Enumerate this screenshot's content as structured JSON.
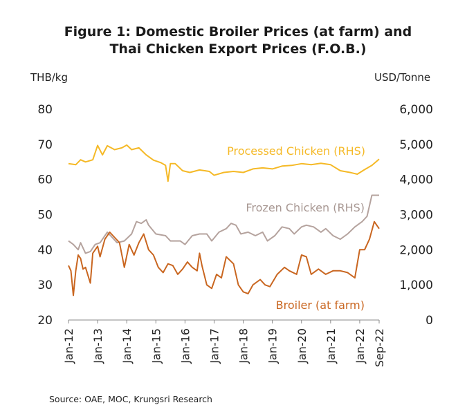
{
  "chart_data": {
    "type": "line",
    "title": "Figure 1: Domestic Broiler Prices (at farm) and Thai Chicken Export Prices (F.O.B.)",
    "title_lines": [
      "Figure 1: Domestic Broiler Prices (at farm) and",
      "Thai Chicken Export Prices (F.O.B.)"
    ],
    "y_left_label": "THB/kg",
    "y_right_label": "USD/Tonne",
    "y_left_range": [
      20,
      80
    ],
    "y_left_ticks": [
      "80",
      "70",
      "60",
      "50",
      "40",
      "30",
      "20"
    ],
    "y_right_range": [
      0,
      6000
    ],
    "y_right_ticks": [
      "6,000",
      "5,000",
      "4,000",
      "3,000",
      "2,000",
      "1,000",
      "0"
    ],
    "x_range": [
      "2012-01",
      "2022-09"
    ],
    "x_ticks": [
      "Jan-12",
      "Jan-13",
      "Jan-14",
      "Jan-15",
      "Jan-16",
      "Jan-17",
      "Jan-18",
      "Jan-19",
      "Jan-20",
      "Jan-21",
      "Jan-22",
      "Sep-22"
    ],
    "x_tick_dates": [
      "2012-01",
      "2013-01",
      "2014-01",
      "2015-01",
      "2016-01",
      "2017-01",
      "2018-01",
      "2019-01",
      "2020-01",
      "2021-01",
      "2022-01",
      "2022-09"
    ],
    "grid": false,
    "series": [
      {
        "name": "Processed Chicken (RHS)",
        "axis": "right",
        "color": "#F5B926",
        "points": [
          [
            "2012-01",
            4450
          ],
          [
            "2012-04",
            4420
          ],
          [
            "2012-06",
            4560
          ],
          [
            "2012-08",
            4500
          ],
          [
            "2012-11",
            4560
          ],
          [
            "2013-01",
            4970
          ],
          [
            "2013-03",
            4700
          ],
          [
            "2013-05",
            4960
          ],
          [
            "2013-08",
            4850
          ],
          [
            "2013-11",
            4900
          ],
          [
            "2014-01",
            4980
          ],
          [
            "2014-03",
            4850
          ],
          [
            "2014-06",
            4900
          ],
          [
            "2014-09",
            4700
          ],
          [
            "2014-12",
            4550
          ],
          [
            "2015-03",
            4480
          ],
          [
            "2015-05",
            4400
          ],
          [
            "2015-06",
            3950
          ],
          [
            "2015-07",
            4450
          ],
          [
            "2015-09",
            4450
          ],
          [
            "2015-12",
            4250
          ],
          [
            "2016-03",
            4200
          ],
          [
            "2016-07",
            4270
          ],
          [
            "2016-11",
            4230
          ],
          [
            "2017-01",
            4120
          ],
          [
            "2017-05",
            4200
          ],
          [
            "2017-09",
            4230
          ],
          [
            "2018-01",
            4200
          ],
          [
            "2018-05",
            4300
          ],
          [
            "2018-09",
            4330
          ],
          [
            "2019-01",
            4300
          ],
          [
            "2019-05",
            4380
          ],
          [
            "2019-09",
            4400
          ],
          [
            "2020-01",
            4450
          ],
          [
            "2020-05",
            4420
          ],
          [
            "2020-09",
            4460
          ],
          [
            "2021-01",
            4420
          ],
          [
            "2021-05",
            4250
          ],
          [
            "2021-09",
            4200
          ],
          [
            "2021-12",
            4150
          ],
          [
            "2022-03",
            4280
          ],
          [
            "2022-06",
            4400
          ],
          [
            "2022-09",
            4580
          ]
        ]
      },
      {
        "name": "Frozen Chicken (RHS)",
        "axis": "right",
        "color": "#B5A39E",
        "points": [
          [
            "2012-01",
            2250
          ],
          [
            "2012-03",
            2150
          ],
          [
            "2012-05",
            2000
          ],
          [
            "2012-06",
            2200
          ],
          [
            "2012-08",
            1900
          ],
          [
            "2012-10",
            1950
          ],
          [
            "2012-12",
            2150
          ],
          [
            "2013-02",
            2200
          ],
          [
            "2013-05",
            2500
          ],
          [
            "2013-07",
            2350
          ],
          [
            "2013-09",
            2200
          ],
          [
            "2013-12",
            2250
          ],
          [
            "2014-03",
            2450
          ],
          [
            "2014-05",
            2800
          ],
          [
            "2014-07",
            2750
          ],
          [
            "2014-09",
            2850
          ],
          [
            "2014-10",
            2700
          ],
          [
            "2015-01",
            2450
          ],
          [
            "2015-05",
            2400
          ],
          [
            "2015-07",
            2250
          ],
          [
            "2015-09",
            2250
          ],
          [
            "2015-11",
            2250
          ],
          [
            "2016-01",
            2150
          ],
          [
            "2016-04",
            2400
          ],
          [
            "2016-07",
            2450
          ],
          [
            "2016-10",
            2450
          ],
          [
            "2016-12",
            2250
          ],
          [
            "2017-03",
            2500
          ],
          [
            "2017-06",
            2600
          ],
          [
            "2017-08",
            2750
          ],
          [
            "2017-10",
            2700
          ],
          [
            "2017-12",
            2450
          ],
          [
            "2018-03",
            2500
          ],
          [
            "2018-06",
            2400
          ],
          [
            "2018-09",
            2500
          ],
          [
            "2018-11",
            2250
          ],
          [
            "2019-02",
            2400
          ],
          [
            "2019-05",
            2650
          ],
          [
            "2019-08",
            2600
          ],
          [
            "2019-10",
            2450
          ],
          [
            "2020-01",
            2650
          ],
          [
            "2020-03",
            2700
          ],
          [
            "2020-06",
            2650
          ],
          [
            "2020-09",
            2500
          ],
          [
            "2020-11",
            2600
          ],
          [
            "2021-02",
            2400
          ],
          [
            "2021-05",
            2300
          ],
          [
            "2021-08",
            2450
          ],
          [
            "2021-11",
            2650
          ],
          [
            "2022-01",
            2750
          ],
          [
            "2022-02",
            2800
          ],
          [
            "2022-04",
            2950
          ],
          [
            "2022-06",
            3550
          ],
          [
            "2022-09",
            3550
          ]
        ]
      },
      {
        "name": "Broiler (at farm)",
        "axis": "left",
        "color": "#C96620",
        "points": [
          [
            "2012-01",
            35.5
          ],
          [
            "2012-02",
            34.0
          ],
          [
            "2012-03",
            27.0
          ],
          [
            "2012-04",
            34.0
          ],
          [
            "2012-05",
            38.5
          ],
          [
            "2012-06",
            37.5
          ],
          [
            "2012-07",
            34.5
          ],
          [
            "2012-08",
            35.0
          ],
          [
            "2012-10",
            30.5
          ],
          [
            "2012-11",
            39.0
          ],
          [
            "2013-01",
            41.0
          ],
          [
            "2013-02",
            38.0
          ],
          [
            "2013-04",
            43.0
          ],
          [
            "2013-06",
            45.0
          ],
          [
            "2013-08",
            43.5
          ],
          [
            "2013-10",
            42.0
          ],
          [
            "2013-12",
            35.0
          ],
          [
            "2014-02",
            41.5
          ],
          [
            "2014-04",
            38.5
          ],
          [
            "2014-06",
            42.0
          ],
          [
            "2014-08",
            44.5
          ],
          [
            "2014-10",
            40.0
          ],
          [
            "2014-12",
            38.5
          ],
          [
            "2015-02",
            35.0
          ],
          [
            "2015-04",
            33.5
          ],
          [
            "2015-06",
            36.0
          ],
          [
            "2015-08",
            35.5
          ],
          [
            "2015-10",
            33.0
          ],
          [
            "2015-12",
            34.5
          ],
          [
            "2016-02",
            36.5
          ],
          [
            "2016-04",
            35.0
          ],
          [
            "2016-06",
            34.0
          ],
          [
            "2016-07",
            39.0
          ],
          [
            "2016-08",
            35.5
          ],
          [
            "2016-10",
            30.0
          ],
          [
            "2016-12",
            29.0
          ],
          [
            "2017-02",
            33.0
          ],
          [
            "2017-04",
            32.0
          ],
          [
            "2017-06",
            38.0
          ],
          [
            "2017-09",
            36.0
          ],
          [
            "2017-11",
            30.0
          ],
          [
            "2018-01",
            28.0
          ],
          [
            "2018-03",
            27.5
          ],
          [
            "2018-05",
            30.0
          ],
          [
            "2018-08",
            31.5
          ],
          [
            "2018-10",
            30.0
          ],
          [
            "2018-12",
            29.5
          ],
          [
            "2019-03",
            33.0
          ],
          [
            "2019-06",
            35.0
          ],
          [
            "2019-08",
            34.0
          ],
          [
            "2019-11",
            33.0
          ],
          [
            "2020-01",
            38.5
          ],
          [
            "2020-03",
            38.0
          ],
          [
            "2020-05",
            33.0
          ],
          [
            "2020-08",
            34.5
          ],
          [
            "2020-11",
            33.0
          ],
          [
            "2021-02",
            34.0
          ],
          [
            "2021-05",
            34.0
          ],
          [
            "2021-08",
            33.5
          ],
          [
            "2021-11",
            32.0
          ],
          [
            "2022-01",
            40.0
          ],
          [
            "2022-03",
            40.0
          ],
          [
            "2022-05",
            43.0
          ],
          [
            "2022-07",
            48.0
          ],
          [
            "2022-09",
            46.0
          ]
        ]
      }
    ],
    "annotations": [
      {
        "text": "Processed Chicken (RHS)",
        "color": "#F5B926",
        "series": 0
      },
      {
        "text": "Frozen Chicken (RHS)",
        "color": "#A89893",
        "series": 1
      },
      {
        "text": "Broiler (at farm)",
        "color": "#C96620",
        "series": 2
      }
    ],
    "source": "Source: OAE, MOC, Krungsri Research"
  }
}
